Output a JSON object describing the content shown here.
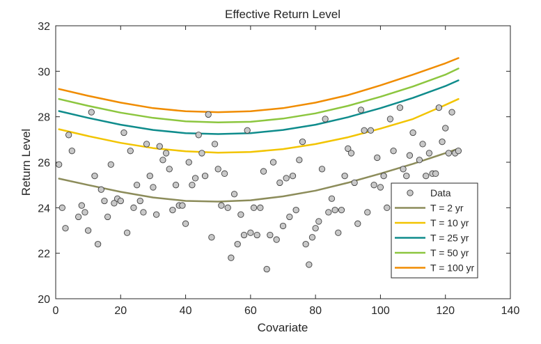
{
  "chart_data": {
    "type": "scatter",
    "title": "Effective Return Level",
    "xlabel": "Covariate",
    "ylabel": "Return Level",
    "xlim": [
      0,
      140
    ],
    "ylim": [
      20,
      32
    ],
    "xticks": [
      "0",
      "20",
      "40",
      "60",
      "80",
      "100",
      "120",
      "140"
    ],
    "yticks": [
      "20",
      "22",
      "24",
      "26",
      "28",
      "30",
      "32"
    ],
    "grid": false,
    "legend_position": "bottom-right",
    "scatter": {
      "name": "Data",
      "color": "#c8c8c8",
      "x": [
        1,
        2,
        3,
        4,
        5,
        7,
        8,
        9,
        10,
        11,
        12,
        13,
        14,
        15,
        16,
        17,
        18,
        19,
        20,
        21,
        22,
        23,
        24,
        25,
        26,
        27,
        28,
        29,
        30,
        31,
        32,
        33,
        34,
        35,
        36,
        37,
        38,
        39,
        40,
        41,
        42,
        43,
        44,
        45,
        46,
        47,
        48,
        49,
        50,
        51,
        52,
        53,
        54,
        55,
        56,
        57,
        58,
        59,
        60,
        61,
        62,
        63,
        64,
        65,
        66,
        67,
        68,
        69,
        70,
        71,
        72,
        73,
        74,
        75,
        76,
        77,
        78,
        79,
        80,
        81,
        82,
        83,
        84,
        85,
        86,
        87,
        88,
        89,
        90,
        91,
        92,
        93,
        94,
        95,
        96,
        97,
        98,
        99,
        100,
        101,
        102,
        103,
        104,
        105,
        106,
        107,
        108,
        109,
        110,
        111,
        112,
        113,
        114,
        115,
        116,
        117,
        118,
        119,
        120,
        121,
        122,
        123,
        124
      ],
      "y": [
        25.9,
        24.0,
        23.1,
        27.2,
        26.5,
        23.6,
        24.1,
        23.8,
        23.0,
        28.2,
        25.4,
        22.4,
        24.8,
        24.3,
        23.6,
        25.9,
        24.2,
        24.4,
        24.3,
        27.3,
        22.9,
        26.5,
        24.0,
        25.0,
        24.3,
        23.8,
        26.8,
        25.4,
        24.9,
        23.7,
        26.7,
        26.1,
        26.4,
        25.7,
        23.9,
        25.0,
        24.1,
        24.1,
        23.3,
        26.0,
        25.0,
        25.3,
        27.2,
        26.4,
        25.4,
        28.1,
        22.7,
        26.8,
        25.7,
        24.1,
        25.5,
        24.0,
        21.8,
        24.6,
        22.4,
        23.7,
        22.8,
        27.4,
        22.9,
        24.0,
        22.8,
        24.0,
        25.6,
        21.3,
        22.8,
        26.0,
        22.6,
        25.1,
        23.2,
        25.3,
        23.6,
        25.4,
        23.9,
        26.1,
        26.9,
        22.4,
        21.5,
        22.7,
        23.1,
        23.4,
        25.7,
        27.9,
        23.8,
        24.4,
        23.9,
        22.9,
        23.9,
        25.4,
        26.6,
        26.4,
        25.1,
        23.3,
        28.3,
        27.4,
        23.8,
        27.4,
        25.0,
        26.2,
        24.9,
        25.4,
        24.0,
        27.9,
        26.5,
        24.5,
        28.4,
        25.7,
        25.4,
        26.3,
        27.3,
        24.5,
        26.1,
        26.8,
        25.4,
        26.4,
        25.5,
        25.5,
        28.4,
        26.9,
        27.5,
        26.4,
        28.2,
        26.4,
        26.5
      ]
    },
    "series": [
      {
        "name": "T = 2 yr",
        "color": "#8c8c5a",
        "x": [
          1,
          10,
          20,
          30,
          40,
          50,
          60,
          70,
          80,
          90,
          100,
          110,
          120,
          124
        ],
        "y": [
          25.28,
          25.0,
          24.7,
          24.45,
          24.3,
          24.27,
          24.33,
          24.5,
          24.75,
          25.1,
          25.5,
          25.93,
          26.4,
          26.6
        ]
      },
      {
        "name": "T = 10 yr",
        "color": "#f2c400",
        "x": [
          1,
          10,
          20,
          30,
          40,
          50,
          60,
          70,
          80,
          90,
          100,
          110,
          120,
          124
        ],
        "y": [
          27.45,
          27.15,
          26.85,
          26.62,
          26.48,
          26.42,
          26.45,
          26.58,
          26.8,
          27.1,
          27.48,
          27.9,
          28.52,
          28.78
        ]
      },
      {
        "name": "T = 25 yr",
        "color": "#0f8c8c",
        "x": [
          1,
          10,
          20,
          30,
          40,
          50,
          60,
          70,
          80,
          90,
          100,
          110,
          120,
          124
        ],
        "y": [
          28.25,
          27.95,
          27.65,
          27.42,
          27.28,
          27.24,
          27.28,
          27.42,
          27.65,
          27.98,
          28.38,
          28.83,
          29.35,
          29.6
        ]
      },
      {
        "name": "T = 50 yr",
        "color": "#8cc63f",
        "x": [
          1,
          10,
          20,
          30,
          40,
          50,
          60,
          70,
          80,
          90,
          100,
          110,
          120,
          124
        ],
        "y": [
          28.78,
          28.48,
          28.18,
          27.95,
          27.8,
          27.75,
          27.78,
          27.92,
          28.15,
          28.48,
          28.88,
          29.33,
          29.85,
          30.12
        ]
      },
      {
        "name": "T = 100 yr",
        "color": "#f08c00",
        "x": [
          1,
          10,
          20,
          30,
          40,
          50,
          60,
          70,
          80,
          90,
          100,
          110,
          120,
          124
        ],
        "y": [
          29.22,
          28.92,
          28.62,
          28.38,
          28.24,
          28.2,
          28.24,
          28.38,
          28.62,
          28.95,
          29.38,
          29.85,
          30.35,
          30.58
        ]
      }
    ],
    "legend": [
      "Data",
      "T = 2 yr",
      "T = 10 yr",
      "T = 25 yr",
      "T = 50 yr",
      "T = 100 yr"
    ]
  }
}
